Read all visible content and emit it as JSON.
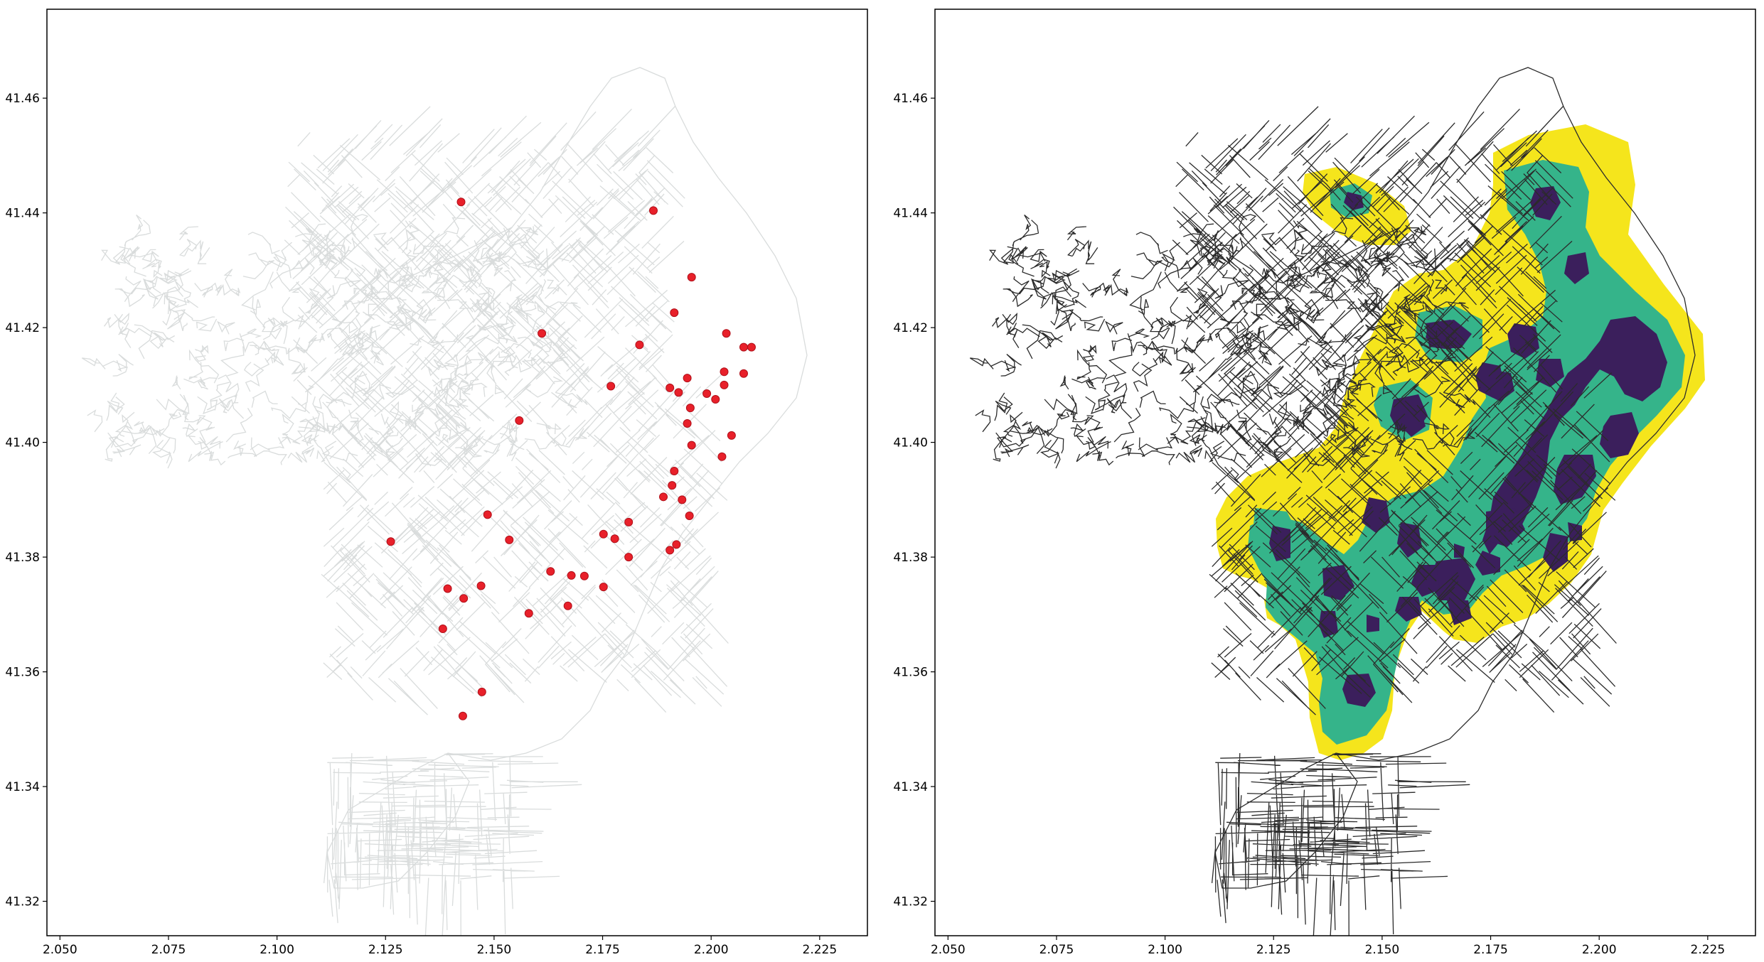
{
  "figure": {
    "colors": {
      "background": "#ffffff",
      "axes_edge": "#000000",
      "street_light": "#d9dcdc",
      "street_dark": "#2b2b2b",
      "point": "#e8202a",
      "kde_low": "#f5e51c",
      "kde_mid": "#35b48a",
      "kde_high": "#3b1f5c"
    }
  },
  "chart_data": [
    {
      "type": "scatter",
      "title": "",
      "xlabel": "",
      "ylabel": "",
      "xlim": [
        2.047,
        2.236
      ],
      "ylim": [
        41.314,
        41.4755
      ],
      "grid": false,
      "legend": "none",
      "xticks": [
        "2.050",
        "2.075",
        "2.100",
        "2.125",
        "2.150",
        "2.175",
        "2.200",
        "2.225"
      ],
      "xtick_values": [
        2.05,
        2.075,
        2.1,
        2.125,
        2.15,
        2.175,
        2.2,
        2.225
      ],
      "yticks": [
        "41.32",
        "41.34",
        "41.36",
        "41.38",
        "41.40",
        "41.42",
        "41.44",
        "41.46"
      ],
      "ytick_values": [
        41.32,
        41.34,
        41.36,
        41.38,
        41.4,
        41.42,
        41.44,
        41.46
      ],
      "background_layer": "street-network (light gray)",
      "series": [
        {
          "marker_color": "#e8202a",
          "points": [
            [
              2.1424,
              41.4419
            ],
            [
              2.1867,
              41.4404
            ],
            [
              2.1955,
              41.4288
            ],
            [
              2.1915,
              41.4226
            ],
            [
              2.161,
              41.419
            ],
            [
              2.1835,
              41.417
            ],
            [
              2.2035,
              41.419
            ],
            [
              2.2075,
              41.4166
            ],
            [
              2.2093,
              41.4166
            ],
            [
              2.203,
              41.4123
            ],
            [
              2.2075,
              41.412
            ],
            [
              2.1945,
              41.4112
            ],
            [
              2.203,
              41.41
            ],
            [
              2.1905,
              41.4095
            ],
            [
              2.199,
              41.4085
            ],
            [
              2.1925,
              41.4087
            ],
            [
              2.1769,
              41.4098
            ],
            [
              2.201,
              41.4075
            ],
            [
              2.1952,
              41.406
            ],
            [
              2.1945,
              41.4033
            ],
            [
              2.1558,
              41.4038
            ],
            [
              2.2047,
              41.4012
            ],
            [
              2.1955,
              41.3995
            ],
            [
              2.2025,
              41.3975
            ],
            [
              2.1915,
              41.395
            ],
            [
              2.191,
              41.3925
            ],
            [
              2.189,
              41.3905
            ],
            [
              2.1933,
              41.39
            ],
            [
              2.195,
              41.3872
            ],
            [
              2.1485,
              41.3874
            ],
            [
              2.181,
              41.3861
            ],
            [
              2.1752,
              41.384
            ],
            [
              2.1778,
              41.3832
            ],
            [
              2.1535,
              41.383
            ],
            [
              2.1262,
              41.3827
            ],
            [
              2.192,
              41.3822
            ],
            [
              2.1905,
              41.3812
            ],
            [
              2.181,
              41.38
            ],
            [
              2.163,
              41.3775
            ],
            [
              2.1678,
              41.3768
            ],
            [
              2.1708,
              41.3767
            ],
            [
              2.1752,
              41.3748
            ],
            [
              2.147,
              41.375
            ],
            [
              2.1393,
              41.3745
            ],
            [
              2.143,
              41.3728
            ],
            [
              2.158,
              41.3702
            ],
            [
              2.167,
              41.3715
            ],
            [
              2.1382,
              41.3675
            ],
            [
              2.1472,
              41.3565
            ],
            [
              2.1428,
              41.3523
            ]
          ]
        }
      ]
    },
    {
      "type": "heatmap",
      "title": "",
      "xlabel": "",
      "ylabel": "",
      "xlim": [
        2.047,
        2.236
      ],
      "ylim": [
        41.314,
        41.4755
      ],
      "grid": false,
      "legend": "none",
      "xticks": [
        "2.050",
        "2.075",
        "2.100",
        "2.125",
        "2.150",
        "2.175",
        "2.200",
        "2.225"
      ],
      "xtick_values": [
        2.05,
        2.075,
        2.1,
        2.125,
        2.15,
        2.175,
        2.2,
        2.225
      ],
      "yticks": [
        "41.32",
        "41.34",
        "41.36",
        "41.38",
        "41.40",
        "41.42",
        "41.44",
        "41.46"
      ],
      "ytick_values": [
        41.32,
        41.34,
        41.36,
        41.38,
        41.4,
        41.42,
        41.44,
        41.46
      ],
      "background_layer": "street-network (dark gray)",
      "density_levels": [
        "low",
        "medium",
        "high"
      ],
      "level_colors": [
        "#f5e51c",
        "#35b48a",
        "#3b1f5c"
      ]
    }
  ]
}
